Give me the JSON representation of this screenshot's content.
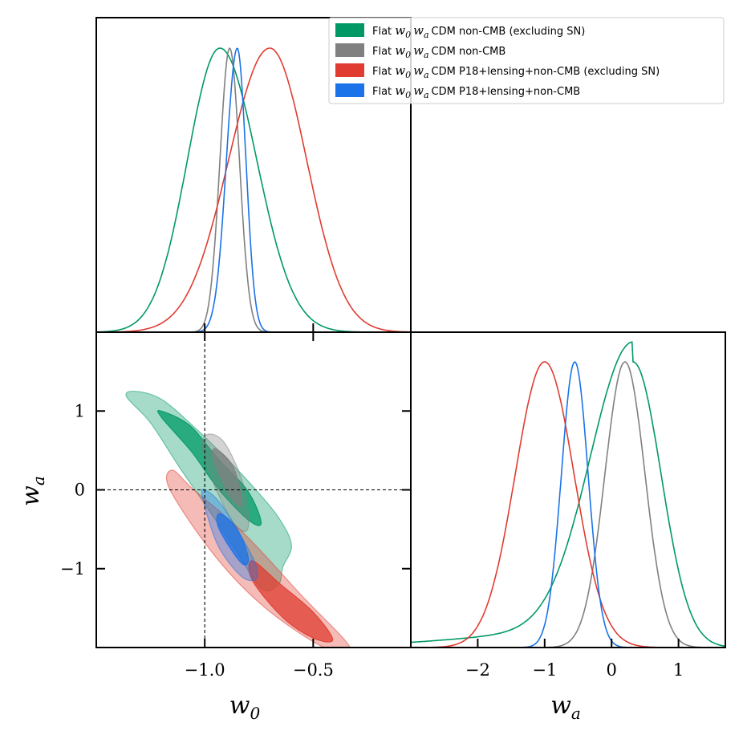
{
  "chart_data": {
    "type": "corner-plot",
    "parameters": [
      {
        "symbol": "w",
        "sub": "0",
        "range": [
          -1.5,
          -0.05
        ],
        "ticks": [
          -1.0,
          -0.5
        ],
        "tick_labels": [
          "−1.0",
          "−0.5"
        ],
        "fiducial": -1.0
      },
      {
        "symbol": "w",
        "sub": "a",
        "range": [
          -2.0,
          2.0
        ],
        "ticks": [
          -1,
          0,
          1
        ],
        "tick_labels": [
          "−1",
          "0",
          "1"
        ],
        "fiducial": 0.0
      }
    ],
    "wa_marginal_axis": {
      "range": [
        -3.0,
        1.7
      ],
      "ticks": [
        -2,
        -1,
        0,
        1
      ],
      "tick_labels": [
        "−2",
        "−1",
        "0",
        "1"
      ]
    },
    "xlabel_w0": {
      "base": "w",
      "sub": "0"
    },
    "xlabel_wa": {
      "base": "w",
      "sub": "a"
    },
    "ylabel_wa": {
      "base": "w",
      "sub": "a"
    },
    "legend": {
      "placement": "top-right",
      "entries": [
        {
          "pre": "Flat ",
          "mathbase1": "w",
          "mathsub1": "0",
          "mathbase2": "w",
          "mathsub2": "a",
          "post": "CDM non-CMB (excluding SN)",
          "color": "#009966"
        },
        {
          "pre": "Flat ",
          "mathbase1": "w",
          "mathsub1": "0",
          "mathbase2": "w",
          "mathsub2": "a",
          "post": "CDM non-CMB",
          "color": "#808080"
        },
        {
          "pre": "Flat ",
          "mathbase1": "w",
          "mathsub1": "0",
          "mathbase2": "w",
          "mathsub2": "a",
          "post": "CDM P18+lensing+non-CMB (excluding SN)",
          "color": "#e03c31"
        },
        {
          "pre": "Flat ",
          "mathbase1": "w",
          "mathsub1": "0",
          "mathbase2": "w",
          "mathsub2": "a",
          "post": "CDM P18+lensing+non-CMB",
          "color": "#1a73e8"
        }
      ]
    },
    "series": [
      {
        "name": "Flat w0waCDM non-CMB (excluding SN)",
        "color": "#009966",
        "w0_marginal": {
          "mode": -0.93,
          "sigma_left": 0.15,
          "sigma_right": 0.17
        },
        "wa_marginal": {
          "mode": 0.32,
          "sigma_left": 0.55,
          "sigma_right": 0.42,
          "tail_weight": 0.07
        },
        "contour_2sigma": [
          [
            -1.32,
            1.25
          ],
          [
            -1.2,
            1.15
          ],
          [
            -1.05,
            0.8
          ],
          [
            -0.9,
            0.4
          ],
          [
            -0.78,
            0.05
          ],
          [
            -0.66,
            -0.35
          ],
          [
            -0.6,
            -0.7
          ],
          [
            -0.64,
            -0.98
          ],
          [
            -0.66,
            -1.2
          ],
          [
            -0.74,
            -1.25
          ],
          [
            -0.86,
            -0.75
          ],
          [
            -1.0,
            -0.18
          ],
          [
            -1.12,
            0.3
          ],
          [
            -1.25,
            0.85
          ],
          [
            -1.36,
            1.18
          ]
        ],
        "contour_1sigma": [
          [
            -1.2,
            1.0
          ],
          [
            -1.07,
            0.82
          ],
          [
            -0.94,
            0.4
          ],
          [
            -0.8,
            -0.02
          ],
          [
            -0.74,
            -0.42
          ],
          [
            -0.8,
            -0.38
          ],
          [
            -0.94,
            0.02
          ],
          [
            -1.06,
            0.48
          ],
          [
            -1.2,
            0.92
          ]
        ]
      },
      {
        "name": "Flat w0waCDM non-CMB",
        "color": "#808080",
        "w0_marginal": {
          "mode": -0.885,
          "sigma_left": 0.045,
          "sigma_right": 0.045
        },
        "wa_marginal": {
          "mode": 0.2,
          "sigma_left": 0.3,
          "sigma_right": 0.3
        },
        "contour_2sigma": [
          [
            -0.99,
            0.7
          ],
          [
            -0.91,
            0.6
          ],
          [
            -0.82,
            0.05
          ],
          [
            -0.8,
            -0.48
          ],
          [
            -0.86,
            -0.45
          ],
          [
            -0.95,
            0.02
          ],
          [
            -1.01,
            0.5
          ]
        ],
        "contour_1sigma": [
          [
            -0.95,
            0.52
          ],
          [
            -0.87,
            0.3
          ],
          [
            -0.83,
            -0.12
          ],
          [
            -0.84,
            -0.2
          ],
          [
            -0.9,
            0.0
          ],
          [
            -0.96,
            0.4
          ]
        ]
      },
      {
        "name": "Flat w0waCDM P18+lensing+non-CMB (excluding SN)",
        "color": "#e03c31",
        "w0_marginal": {
          "mode": -0.7,
          "sigma_left": 0.19,
          "sigma_right": 0.17
        },
        "wa_marginal": {
          "mode": -1.0,
          "sigma_left": 0.44,
          "sigma_right": 0.44
        },
        "contour_2sigma": [
          [
            -1.15,
            0.25
          ],
          [
            -1.05,
            0.0
          ],
          [
            -0.82,
            -0.55
          ],
          [
            -0.55,
            -1.35
          ],
          [
            -0.33,
            -2.0
          ],
          [
            -0.45,
            -2.0
          ],
          [
            -0.72,
            -1.5
          ],
          [
            -0.95,
            -0.85
          ],
          [
            -1.16,
            0.0
          ]
        ],
        "contour_1sigma": [
          [
            -0.78,
            -0.9
          ],
          [
            -0.65,
            -1.2
          ],
          [
            -0.5,
            -1.55
          ],
          [
            -0.41,
            -1.9
          ],
          [
            -0.5,
            -1.88
          ],
          [
            -0.64,
            -1.62
          ],
          [
            -0.78,
            -1.15
          ]
        ]
      },
      {
        "name": "Flat w0waCDM P18+lensing+non-CMB",
        "color": "#1a73e8",
        "w0_marginal": {
          "mode": -0.85,
          "sigma_left": 0.05,
          "sigma_right": 0.04
        },
        "wa_marginal": {
          "mode": -0.55,
          "sigma_left": 0.2,
          "sigma_right": 0.2
        },
        "contour_2sigma": [
          [
            -1.0,
            0.0
          ],
          [
            -0.92,
            -0.2
          ],
          [
            -0.78,
            -0.85
          ],
          [
            -0.76,
            -1.12
          ],
          [
            -0.83,
            -1.1
          ],
          [
            -0.94,
            -0.7
          ],
          [
            -1.01,
            -0.1
          ]
        ],
        "contour_1sigma": [
          [
            -0.93,
            -0.3
          ],
          [
            -0.85,
            -0.5
          ],
          [
            -0.8,
            -0.85
          ],
          [
            -0.82,
            -0.95
          ],
          [
            -0.88,
            -0.75
          ],
          [
            -0.94,
            -0.45
          ]
        ]
      }
    ]
  }
}
